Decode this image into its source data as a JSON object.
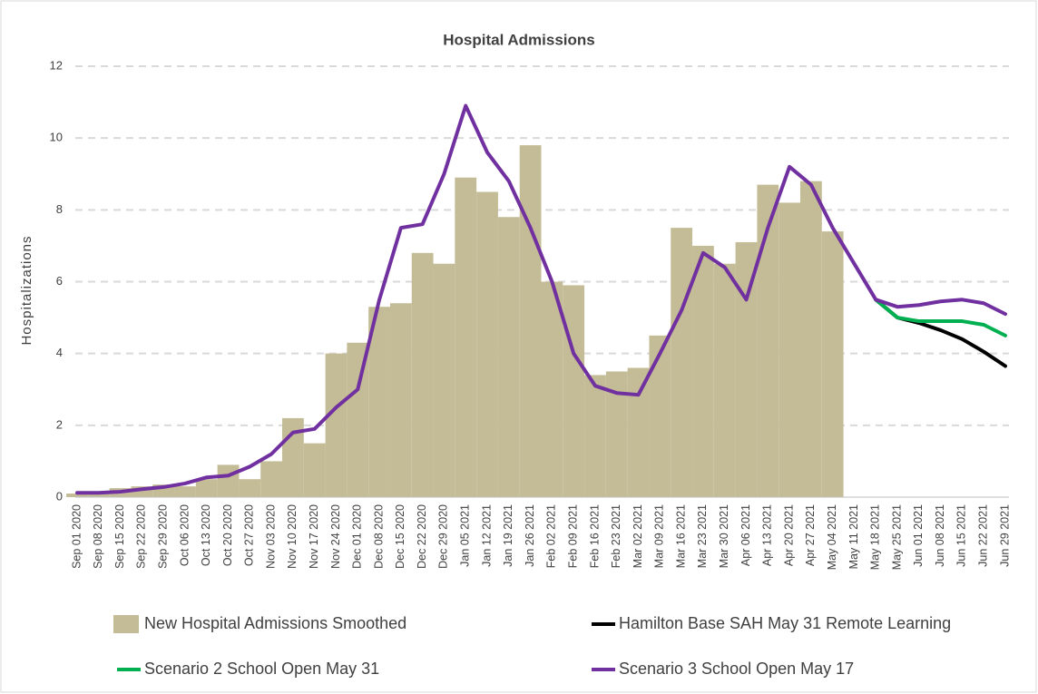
{
  "chart_data": {
    "type": "bar",
    "title": "Hospital Admissions",
    "y_label": "Hospitalizations",
    "categories": [
      "Sep 01 2020",
      "Sep 08 2020",
      "Sep 15 2020",
      "Sep 22 2020",
      "Sep 29 2020",
      "Oct 06 2020",
      "Oct 13 2020",
      "Oct 20 2020",
      "Oct 27 2020",
      "Nov 03 2020",
      "Nov 10 2020",
      "Nov 17 2020",
      "Nov 24 2020",
      "Dec 01 2020",
      "Dec 08 2020",
      "Dec 15 2020",
      "Dec 22 2020",
      "Dec 29 2020",
      "Jan 05 2021",
      "Jan 12 2021",
      "Jan 19 2021",
      "Jan 26 2021",
      "Feb 02 2021",
      "Feb 09 2021",
      "Feb 16 2021",
      "Feb 23 2021",
      "Mar 02 2021",
      "Mar 09 2021",
      "Mar 16 2021",
      "Mar 23 2021",
      "Mar 30 2021",
      "Apr 06 2021",
      "Apr 13 2021",
      "Apr 20 2021",
      "Apr 27 2021",
      "May 04 2021",
      "May 11 2021",
      "May 18 2021",
      "May 25 2021",
      "Jun 01 2021",
      "Jun 08 2021",
      "Jun 15 2021",
      "Jun 22 2021",
      "Jun 29 2021"
    ],
    "series": [
      {
        "name": "New Hospital Admissions Smoothed",
        "type": "bar",
        "color": "#c4bc96",
        "values": [
          0.1,
          0.15,
          0.25,
          0.3,
          0.35,
          0.3,
          0.5,
          0.9,
          0.5,
          1.0,
          2.2,
          1.5,
          4.0,
          4.3,
          5.3,
          5.4,
          6.8,
          6.5,
          8.9,
          8.5,
          7.8,
          9.8,
          6.0,
          5.9,
          3.4,
          3.5,
          3.6,
          4.5,
          7.5,
          7.0,
          6.5,
          7.1,
          8.7,
          8.2,
          8.8,
          7.4,
          null,
          null,
          null,
          null,
          null,
          null,
          null,
          null
        ]
      },
      {
        "name": "Hamilton Base SAH May 31 Remote Learning",
        "type": "line",
        "color": "#000000",
        "values": [
          null,
          null,
          null,
          null,
          null,
          null,
          null,
          null,
          null,
          null,
          null,
          null,
          null,
          null,
          null,
          null,
          null,
          null,
          null,
          null,
          null,
          null,
          null,
          null,
          null,
          null,
          null,
          null,
          null,
          null,
          null,
          null,
          null,
          null,
          null,
          null,
          null,
          5.5,
          5.0,
          4.85,
          4.65,
          4.4,
          4.05,
          3.65
        ]
      },
      {
        "name": "Scenario 2 School Open May 31",
        "type": "line",
        "color": "#00b050",
        "values": [
          null,
          null,
          null,
          null,
          null,
          null,
          null,
          null,
          null,
          null,
          null,
          null,
          null,
          null,
          null,
          null,
          null,
          null,
          null,
          null,
          null,
          null,
          null,
          null,
          null,
          null,
          null,
          null,
          null,
          null,
          null,
          null,
          null,
          null,
          null,
          null,
          null,
          5.5,
          5.0,
          4.9,
          4.9,
          4.9,
          4.8,
          4.5
        ]
      },
      {
        "name": "Scenario 3 School Open May 17",
        "type": "line",
        "color": "#7030a0",
        "values": [
          0.12,
          0.12,
          0.15,
          0.22,
          0.28,
          0.38,
          0.55,
          0.6,
          0.85,
          1.2,
          1.8,
          1.9,
          2.5,
          3.0,
          5.5,
          7.5,
          7.6,
          9.0,
          10.9,
          9.6,
          8.8,
          7.5,
          6.0,
          4.0,
          3.1,
          2.9,
          2.85,
          4.0,
          5.2,
          6.8,
          6.4,
          5.5,
          7.5,
          9.2,
          8.7,
          7.5,
          6.5,
          5.5,
          5.3,
          5.35,
          5.45,
          5.5,
          5.4,
          5.1
        ]
      }
    ],
    "ylim": [
      0,
      12
    ],
    "yticks": [
      0,
      2,
      4,
      6,
      8,
      10,
      12
    ],
    "grid": true
  }
}
